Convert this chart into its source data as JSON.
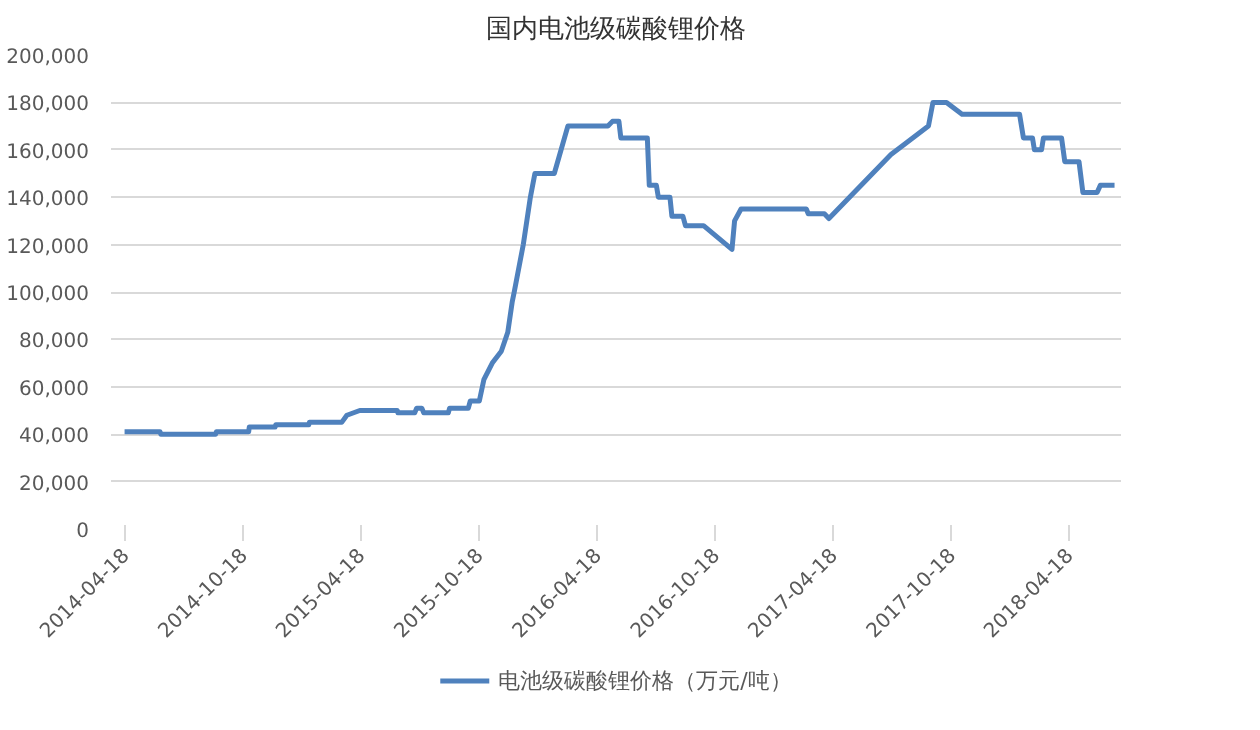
{
  "chart_data": {
    "type": "line",
    "title": "国内电池级碳酸锂价格",
    "x": [
      "2014-04-18",
      "2014-06-12",
      "2014-06-13",
      "2014-09-06",
      "2014-09-07",
      "2014-10-27",
      "2014-10-28",
      "2014-12-07",
      "2014-12-08",
      "2015-01-28",
      "2015-01-29",
      "2015-03-20",
      "2015-03-28",
      "2015-04-17",
      "2015-06-14",
      "2015-06-15",
      "2015-07-11",
      "2015-07-14",
      "2015-07-22",
      "2015-07-25",
      "2015-09-01",
      "2015-09-03",
      "2015-10-02",
      "2015-10-05",
      "2015-10-19",
      "2015-10-26",
      "2015-11-08",
      "2015-11-22",
      "2015-12-02",
      "2015-12-09",
      "2015-12-12",
      "2015-12-26",
      "2016-01-06",
      "2016-01-13",
      "2016-02-12",
      "2016-03-04",
      "2016-05-05",
      "2016-05-12",
      "2016-05-22",
      "2016-05-25",
      "2016-07-05",
      "2016-07-08",
      "2016-07-19",
      "2016-07-22",
      "2016-08-09",
      "2016-08-12",
      "2016-08-29",
      "2016-09-02",
      "2016-09-30",
      "2016-11-13",
      "2016-11-17",
      "2016-11-27",
      "2017-03-08",
      "2017-03-11",
      "2017-04-05",
      "2017-04-12",
      "2017-07-17",
      "2017-08-10",
      "2017-09-13",
      "2017-09-20",
      "2017-10-11",
      "2017-11-04",
      "2018-02-01",
      "2018-02-07",
      "2018-02-21",
      "2018-02-24",
      "2018-03-07",
      "2018-03-10",
      "2018-04-07",
      "2018-04-12",
      "2018-05-04",
      "2018-05-10",
      "2018-06-01",
      "2018-06-06",
      "2018-06-28"
    ],
    "series": [
      {
        "name": "电池级碳酸锂价格（万元/吨）",
        "color": "#4f81bd",
        "values": [
          41000,
          41000,
          40000,
          40000,
          41000,
          41000,
          43000,
          43000,
          44000,
          44000,
          45000,
          45000,
          48000,
          50000,
          50000,
          49000,
          49000,
          51000,
          51000,
          49000,
          49000,
          51000,
          51000,
          54000,
          54000,
          63000,
          70000,
          75000,
          83000,
          96000,
          100000,
          120000,
          140000,
          150000,
          150000,
          170000,
          170000,
          172000,
          172000,
          165000,
          165000,
          145000,
          145000,
          140000,
          140000,
          132000,
          132000,
          128000,
          128000,
          118000,
          130000,
          135000,
          135000,
          133000,
          133000,
          131000,
          158000,
          163000,
          170000,
          180000,
          180000,
          175000,
          175000,
          165000,
          165000,
          160000,
          160000,
          165000,
          165000,
          155000,
          155000,
          142000,
          142000,
          145000,
          145000
        ]
      }
    ],
    "xlim": [
      "2014-03-28",
      "2018-07-08"
    ],
    "xticks": [
      "2014-04-18",
      "2014-10-18",
      "2015-04-18",
      "2015-10-18",
      "2016-04-18",
      "2016-10-18",
      "2017-04-18",
      "2017-10-18",
      "2018-04-18"
    ],
    "ylim": [
      0,
      200000
    ],
    "yticks": [
      {
        "value": 0,
        "label": "0"
      },
      {
        "value": 20000,
        "label": "20,000"
      },
      {
        "value": 40000,
        "label": "40,000"
      },
      {
        "value": 60000,
        "label": "60,000"
      },
      {
        "value": 80000,
        "label": "80,000"
      },
      {
        "value": 100000,
        "label": "100,000"
      },
      {
        "value": 120000,
        "label": "120,000"
      },
      {
        "value": 140000,
        "label": "140,000"
      },
      {
        "value": 160000,
        "label": "160,000"
      },
      {
        "value": 180000,
        "label": "180,000"
      },
      {
        "value": 200000,
        "label": "200,000"
      }
    ],
    "grid": "y",
    "legend": "bottom",
    "line_style": "solid"
  }
}
